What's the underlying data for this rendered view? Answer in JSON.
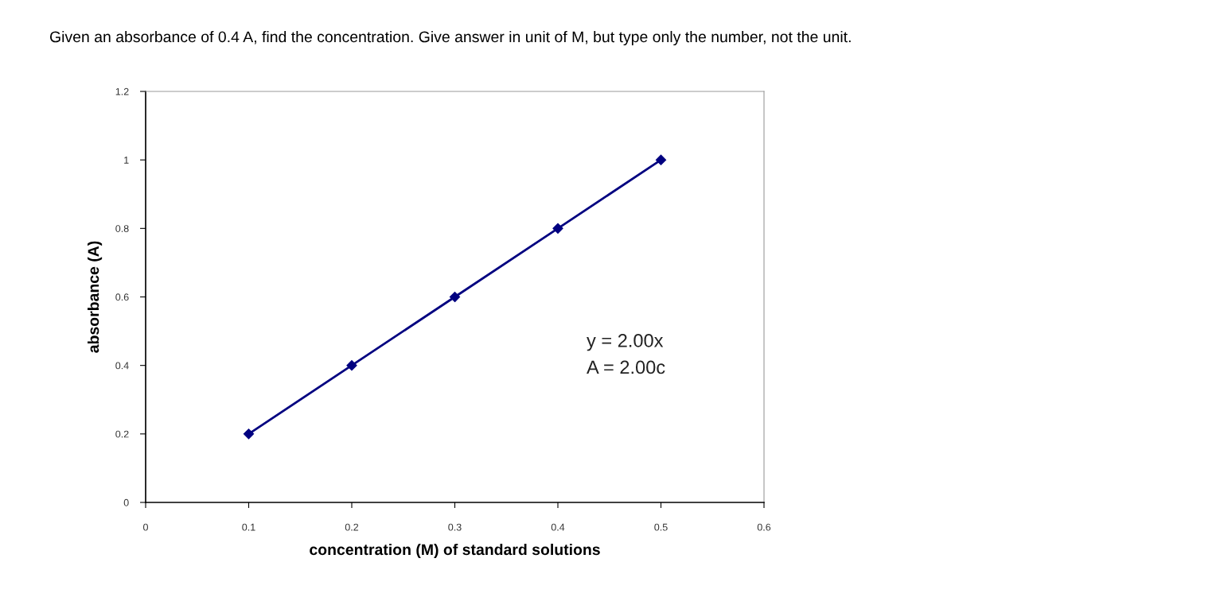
{
  "chart_data": {
    "type": "line",
    "title": "Given an absorbance of 0.4 A, find the concentration. Give answer in unit of M, but type only the number, not the unit.",
    "xlabel": "concentration (M) of standard solutions",
    "ylabel": "absorbance (A)",
    "x": [
      0.1,
      0.2,
      0.3,
      0.4,
      0.5
    ],
    "series": [
      {
        "color": "#000080",
        "values": [
          0.2,
          0.4,
          0.6,
          0.8,
          1.0
        ]
      }
    ],
    "annotations": [
      "y = 2.00x",
      "A = 2.00c"
    ],
    "xlim": [
      0,
      0.6
    ],
    "xticks": [
      0,
      0.1,
      0.2,
      0.3,
      0.4,
      0.5,
      0.6
    ],
    "ylim": [
      0,
      1.2
    ],
    "yticks": [
      0,
      0.2,
      0.4,
      0.6,
      0.8,
      1,
      1.2
    ],
    "grid": false,
    "legend": false,
    "marker": "diamond",
    "line_style": "solid"
  }
}
